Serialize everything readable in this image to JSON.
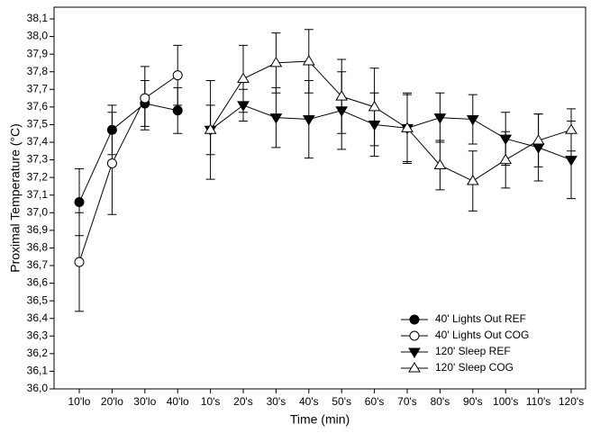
{
  "chart_data": {
    "type": "line",
    "x_label": "Time (min)",
    "y_label": "Proximal Temperature (°C)",
    "categories": [
      "10'lo",
      "20'lo",
      "30'lo",
      "40'lo",
      "10's",
      "20's",
      "30's",
      "40's",
      "50's",
      "60's",
      "70's",
      "80's",
      "90's",
      "100's",
      "110's",
      "120's"
    ],
    "series": [
      {
        "name": "40' Lights Out REF",
        "color": "#000000",
        "marker": "circle",
        "filled": true,
        "values": [
          37.06,
          37.47,
          37.62,
          37.58,
          null,
          null,
          null,
          null,
          null,
          null,
          null,
          null,
          null,
          null,
          null,
          null
        ],
        "errors": [
          0.19,
          0.14,
          0.13,
          0.13,
          null,
          null,
          null,
          null,
          null,
          null,
          null,
          null,
          null,
          null,
          null,
          null
        ]
      },
      {
        "name": "40' Lights Out COG",
        "color": "#000000",
        "marker": "circle",
        "filled": false,
        "values": [
          36.72,
          37.28,
          37.65,
          37.78,
          null,
          null,
          null,
          null,
          null,
          null,
          null,
          null,
          null,
          null,
          null,
          null
        ],
        "errors": [
          0.28,
          0.29,
          0.18,
          0.17,
          null,
          null,
          null,
          null,
          null,
          null,
          null,
          null,
          null,
          null,
          null,
          null
        ]
      },
      {
        "name": "120' Sleep REF",
        "color": "#000000",
        "marker": "triangle-down",
        "filled": true,
        "values": [
          null,
          null,
          null,
          null,
          37.47,
          37.61,
          37.54,
          37.53,
          37.58,
          37.5,
          37.48,
          37.54,
          37.53,
          37.42,
          37.37,
          37.3
        ],
        "errors": [
          null,
          null,
          null,
          null,
          0.28,
          0.09,
          0.17,
          0.22,
          0.22,
          0.18,
          0.19,
          0.14,
          0.14,
          0.15,
          0.19,
          0.22
        ]
      },
      {
        "name": "120' Sleep COG",
        "color": "#000000",
        "marker": "triangle-up",
        "filled": false,
        "values": [
          null,
          null,
          null,
          null,
          37.47,
          37.76,
          37.85,
          37.86,
          37.66,
          37.6,
          37.48,
          37.27,
          37.18,
          37.3,
          37.41,
          37.47
        ],
        "errors": [
          null,
          null,
          null,
          null,
          0.14,
          0.19,
          0.17,
          0.18,
          0.21,
          0.22,
          0.2,
          0.14,
          0.17,
          0.16,
          0.15,
          0.12
        ]
      }
    ],
    "ylim": [
      36.0,
      38.1
    ],
    "yticks": [
      {
        "value": 36.0,
        "label": "36,0"
      },
      {
        "value": 36.1,
        "label": "36,1"
      },
      {
        "value": 36.2,
        "label": "36,2"
      },
      {
        "value": 36.3,
        "label": "36,3"
      },
      {
        "value": 36.4,
        "label": "36,4"
      },
      {
        "value": 36.5,
        "label": "36,5"
      },
      {
        "value": 36.6,
        "label": "36,6"
      },
      {
        "value": 36.7,
        "label": "36,7"
      },
      {
        "value": 36.8,
        "label": "36,8"
      },
      {
        "value": 36.9,
        "label": "36,9"
      },
      {
        "value": 37.0,
        "label": "37,0"
      },
      {
        "value": 37.1,
        "label": "37,1"
      },
      {
        "value": 37.2,
        "label": "37,2"
      },
      {
        "value": 37.3,
        "label": "37,3"
      },
      {
        "value": 37.4,
        "label": "37,4"
      },
      {
        "value": 37.5,
        "label": "37,5"
      },
      {
        "value": 37.6,
        "label": "37,6"
      },
      {
        "value": 37.7,
        "label": "37,7"
      },
      {
        "value": 37.8,
        "label": "37,8"
      },
      {
        "value": 37.9,
        "label": "37,9"
      },
      {
        "value": 38.0,
        "label": "38,0"
      },
      {
        "value": 38.1,
        "label": "38,1"
      }
    ],
    "grid": false,
    "legend": "lower right"
  }
}
